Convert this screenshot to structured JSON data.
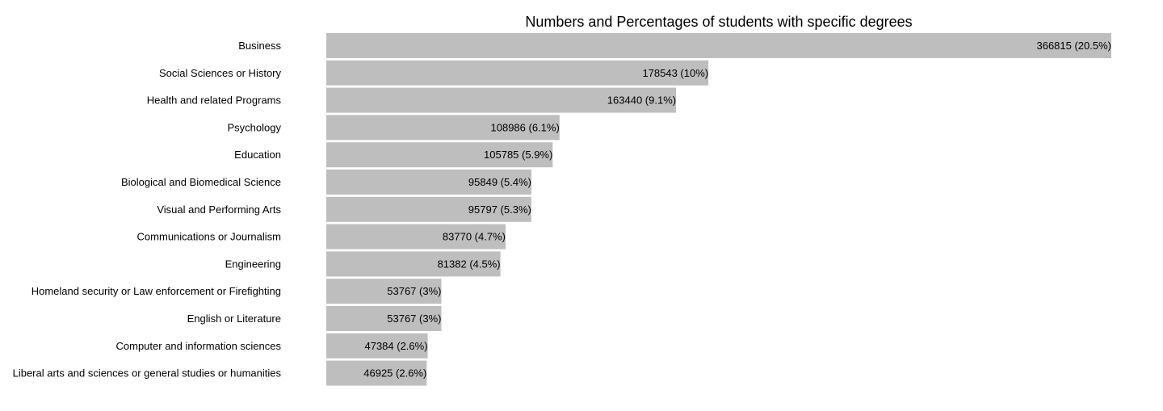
{
  "chart_data": {
    "type": "bar",
    "orientation": "horizontal",
    "title": "Numbers and Percentages of students with specific degrees",
    "xlabel": "",
    "ylabel": "",
    "grid": false,
    "legend": "none",
    "bar_color": "#bebebe",
    "text_color": "#000000",
    "categories": [
      "Business",
      "Social Sciences or History",
      "Health and related Programs",
      "Psychology",
      "Education",
      "Biological and Biomedical Science",
      "Visual and Performing Arts",
      "Communications or Journalism",
      "Engineering",
      "Homeland security or Law enforcement or Firefighting",
      "English or Literature",
      "Computer and information sciences",
      "Liberal arts and sciences or general studies or humanities"
    ],
    "values": [
      366815,
      178543,
      163440,
      108986,
      105785,
      95849,
      95797,
      83770,
      81382,
      53767,
      53767,
      47384,
      46925
    ],
    "data_labels": [
      "366815 (20.5%)",
      "178543 (10%)",
      "163440 (9.1%)",
      "108986 (6.1%)",
      "105785 (5.9%)",
      "95849 (5.4%)",
      "95797 (5.3%)",
      "83770 (4.7%)",
      "81382 (4.5%)",
      "53767 (3%)",
      "53767 (3%)",
      "47384 (2.6%)",
      "46925 (2.6%)"
    ],
    "xlim": [
      0,
      366815
    ]
  }
}
